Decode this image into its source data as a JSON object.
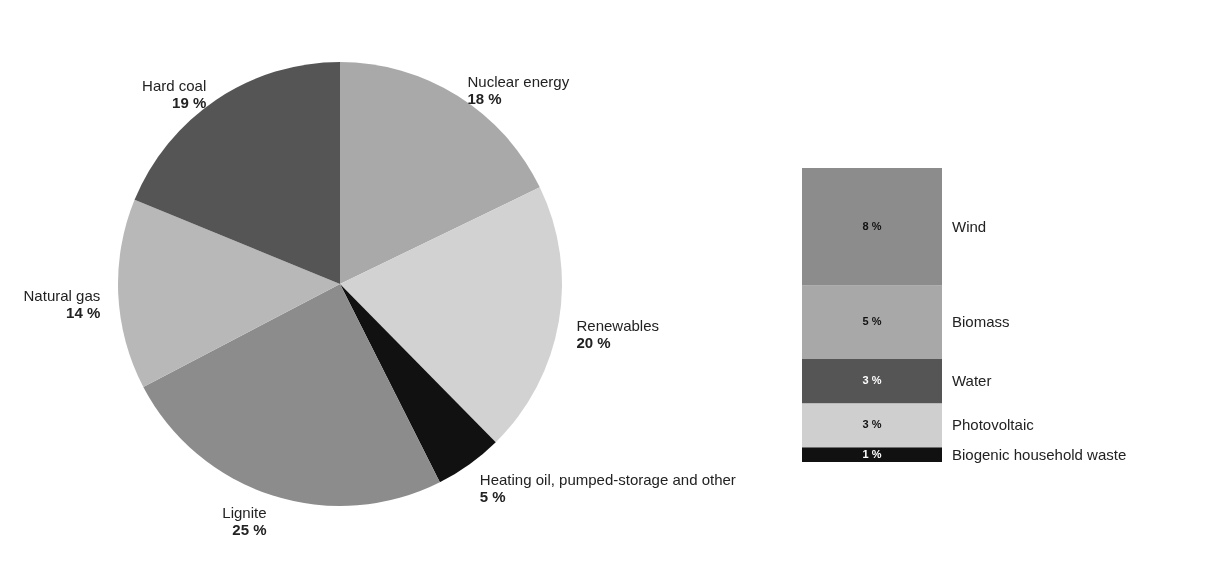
{
  "chart_data": [
    {
      "type": "pie",
      "categories": [
        "Nuclear energy",
        "Renewables",
        "Heating oil, pumped-storage and other",
        "Lignite",
        "Natural gas",
        "Hard coal"
      ],
      "values": [
        18,
        20,
        5,
        25,
        14,
        19
      ],
      "value_labels": [
        "18 %",
        "20 %",
        "5 %",
        "25 %",
        "14 %",
        "19 %"
      ],
      "colors": [
        "#a9a9a9",
        "#d2d2d2",
        "#111111",
        "#8c8c8c",
        "#b8b8b8",
        "#555555"
      ]
    },
    {
      "type": "bar",
      "stacked": true,
      "categories": [
        null
      ],
      "series": [
        {
          "name": "Biogenic household waste",
          "color": "#111111",
          "values": [
            1
          ],
          "value_labels": [
            "1 %"
          ]
        },
        {
          "name": "Photovoltaic",
          "color": "#cfcfcf",
          "values": [
            3
          ],
          "value_labels": [
            "3 %"
          ]
        },
        {
          "name": "Water",
          "color": "#555555",
          "values": [
            3
          ],
          "value_labels": [
            "3 %"
          ]
        },
        {
          "name": "Biomass",
          "color": "#a8a8a8",
          "values": [
            5
          ],
          "value_labels": [
            "5 %"
          ]
        },
        {
          "name": "Wind",
          "color": "#8c8c8c",
          "values": [
            8
          ],
          "value_labels": [
            "8 %"
          ]
        }
      ]
    }
  ]
}
